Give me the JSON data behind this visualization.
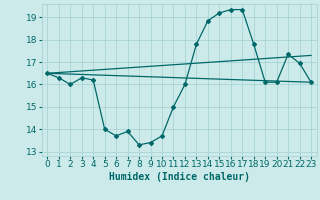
{
  "xlabel": "Humidex (Indice chaleur)",
  "background_color": "#cdeaea",
  "grid_color": "#a8d4d4",
  "line_color": "#006868",
  "xlim": [
    -0.5,
    23.5
  ],
  "ylim": [
    12.8,
    19.6
  ],
  "xticks": [
    0,
    1,
    2,
    3,
    4,
    5,
    6,
    7,
    8,
    9,
    10,
    11,
    12,
    13,
    14,
    15,
    16,
    17,
    18,
    19,
    20,
    21,
    22,
    23
  ],
  "yticks": [
    13,
    14,
    15,
    16,
    17,
    18,
    19
  ],
  "main_series_x": [
    0,
    1,
    2,
    3,
    4,
    5,
    6,
    7,
    8,
    9,
    10,
    11,
    12,
    13,
    14,
    15,
    16,
    17,
    18,
    19,
    20,
    21,
    22,
    23
  ],
  "main_series_y": [
    16.5,
    16.3,
    16.0,
    16.3,
    16.2,
    14.0,
    13.7,
    13.9,
    13.3,
    13.4,
    13.7,
    15.0,
    16.0,
    17.8,
    18.85,
    19.2,
    19.35,
    19.35,
    17.8,
    16.1,
    16.1,
    17.35,
    16.95,
    16.1
  ],
  "flat_line_x": [
    0,
    23
  ],
  "flat_line_y": [
    16.5,
    16.1
  ],
  "rising_line_x": [
    0,
    23
  ],
  "rising_line_y": [
    16.5,
    17.3
  ],
  "xlabel_fontsize": 7,
  "tick_fontsize": 6.5
}
